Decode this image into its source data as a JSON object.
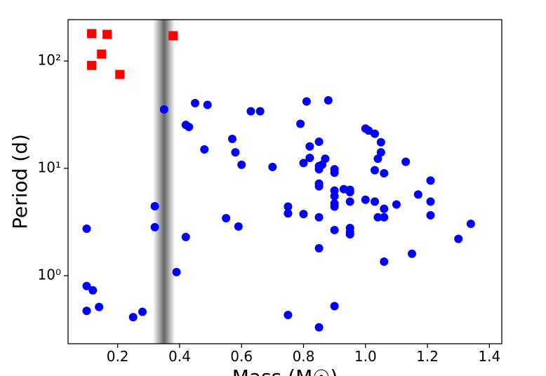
{
  "chart_data": {
    "type": "scatter",
    "xlabel": "Mass (M☉)",
    "ylabel": "Period (d)",
    "xlim": [
      0.04,
      1.44
    ],
    "ylim": [
      0.232,
      243
    ],
    "log_y": true,
    "xticks": [
      0.2,
      0.4,
      0.6,
      0.8,
      {
        "value": 1,
        "label": "1.0"
      },
      1.2,
      1.4
    ],
    "yticks": [
      {
        "value": 1,
        "label": "10⁰"
      },
      {
        "value": 10,
        "label": "10¹"
      },
      {
        "value": 100,
        "label": "10²"
      }
    ],
    "shaded_x": [
      0.315,
      0.385
    ],
    "shaded_color": "#555555",
    "series": [
      {
        "marker": "square",
        "color": "#ff0000",
        "x": [
          0.116,
          0.166,
          0.379,
          0.148,
          0.116,
          0.207
        ],
        "values": [
          180,
          177,
          172,
          116,
          91,
          75
        ]
      },
      {
        "marker": "circle",
        "color": "#0000ff",
        "x": [
          0.35,
          0.45,
          0.49,
          0.42,
          0.43,
          0.48,
          0.63,
          0.66,
          0.57,
          0.58,
          0.6,
          0.7,
          0.81,
          0.88,
          0.79,
          0.82,
          0.82,
          0.87,
          0.8,
          0.85,
          0.85,
          0.86,
          0.85,
          0.9,
          0.9,
          0.85,
          0.85,
          0.9,
          0.93,
          0.95,
          0.95,
          0.9,
          0.9,
          0.9,
          0.95,
          1.0,
          1.01,
          1.03,
          1.05,
          1.05,
          1.04,
          1.13,
          1.03,
          1.06,
          1.21,
          1.17,
          1.0,
          1.03,
          1.1,
          1.21,
          1.06,
          1.21,
          1.04,
          1.06,
          1.34,
          1.3,
          1.15,
          1.06,
          0.75,
          0.75,
          0.8,
          0.85,
          0.95,
          0.95,
          0.95,
          0.9,
          0.85,
          0.55,
          0.59,
          0.32,
          0.32,
          0.42,
          0.39,
          0.1,
          0.1,
          0.12,
          0.1,
          0.14,
          0.28,
          0.25,
          0.75,
          0.9,
          0.85
        ],
        "values": [
          35.4,
          40.5,
          39,
          25.4,
          24.3,
          15,
          34,
          34,
          18.8,
          14.1,
          10.8,
          10.3,
          42,
          43,
          26,
          16,
          12.5,
          12.3,
          11.2,
          17.7,
          10.5,
          10.8,
          9.8,
          9.8,
          9.1,
          7.2,
          6.8,
          6.2,
          6.4,
          6.3,
          6.0,
          5.5,
          4.7,
          4.4,
          4.9,
          23.5,
          22.5,
          21,
          17.5,
          14.1,
          12.3,
          11.5,
          9.6,
          9.0,
          7.7,
          5.7,
          5.1,
          4.9,
          4.6,
          4.9,
          4.2,
          3.65,
          3.5,
          3.5,
          3.04,
          2.2,
          1.6,
          1.35,
          4.4,
          3.8,
          3.75,
          3.5,
          2.78,
          2.54,
          2.43,
          2.66,
          1.8,
          3.43,
          2.87,
          4.43,
          2.83,
          2.29,
          1.08,
          2.74,
          0.8,
          0.73,
          0.47,
          0.51,
          0.46,
          0.41,
          0.43,
          0.52,
          0.33
        ]
      }
    ]
  }
}
